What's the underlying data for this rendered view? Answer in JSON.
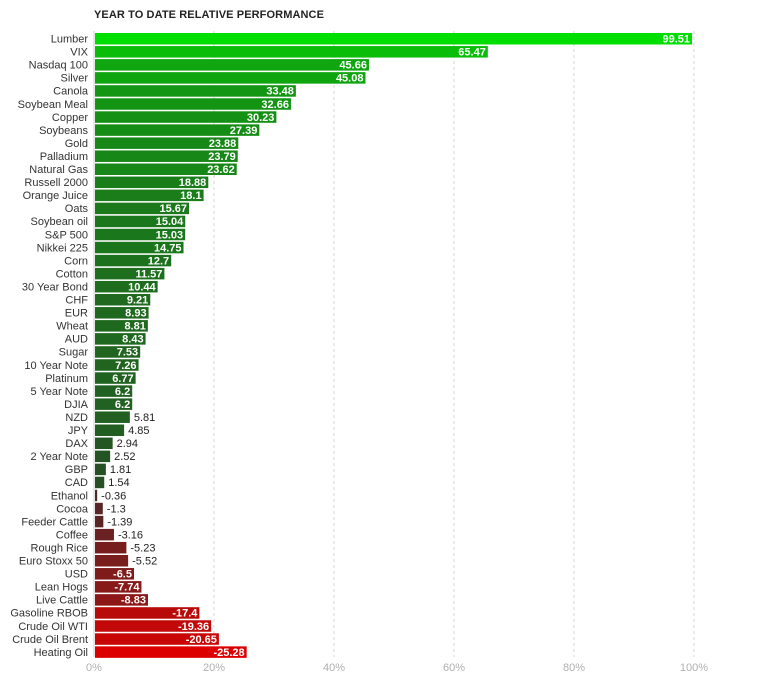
{
  "chart_data": {
    "type": "bar",
    "orientation": "horizontal",
    "title": "YEAR TO DATE RELATIVE PERFORMANCE",
    "xlim": [
      0,
      100
    ],
    "x_ticks": [
      "0%",
      "20%",
      "40%",
      "60%",
      "80%",
      "100%"
    ],
    "grid": true,
    "categories": [
      "Lumber",
      "VIX",
      "Nasdaq 100",
      "Silver",
      "Canola",
      "Soybean Meal",
      "Copper",
      "Soybeans",
      "Gold",
      "Palladium",
      "Natural Gas",
      "Russell 2000",
      "Orange Juice",
      "Oats",
      "Soybean oil",
      "S&P 500",
      "Nikkei 225",
      "Corn",
      "Cotton",
      "30 Year Bond",
      "CHF",
      "EUR",
      "Wheat",
      "AUD",
      "Sugar",
      "10 Year Note",
      "Platinum",
      "5 Year Note",
      "DJIA",
      "NZD",
      "JPY",
      "DAX",
      "2 Year Note",
      "GBP",
      "CAD",
      "Ethanol",
      "Cocoa",
      "Feeder Cattle",
      "Coffee",
      "Rough Rice",
      "Euro Stoxx 50",
      "USD",
      "Lean Hogs",
      "Live Cattle",
      "Gasoline RBOB",
      "Crude Oil WTI",
      "Crude Oil Brent",
      "Heating Oil"
    ],
    "values": [
      99.51,
      65.47,
      45.66,
      45.08,
      33.48,
      32.66,
      30.23,
      27.39,
      23.88,
      23.79,
      23.62,
      18.88,
      18.1,
      15.67,
      15.04,
      15.03,
      14.75,
      12.7,
      11.57,
      10.44,
      9.21,
      8.93,
      8.81,
      8.43,
      7.53,
      7.26,
      6.77,
      6.2,
      6.2,
      5.81,
      4.85,
      2.94,
      2.52,
      1.81,
      1.54,
      -0.36,
      -1.3,
      -1.39,
      -3.16,
      -5.23,
      -5.52,
      -6.5,
      -7.74,
      -8.83,
      -17.4,
      -19.36,
      -20.65,
      -25.28
    ],
    "value_labels": [
      "99.51",
      "65.47",
      "45.66",
      "45.08",
      "33.48",
      "32.66",
      "30.23",
      "27.39",
      "23.88",
      "23.79",
      "23.62",
      "18.88",
      "18.1",
      "15.67",
      "15.04",
      "15.03",
      "14.75",
      "12.7",
      "11.57",
      "10.44",
      "9.21",
      "8.93",
      "8.81",
      "8.43",
      "7.53",
      "7.26",
      "6.77",
      "6.2",
      "6.2",
      "5.81",
      "4.85",
      "2.94",
      "2.52",
      "1.81",
      "1.54",
      "-0.36",
      "-1.3",
      "-1.39",
      "-3.16",
      "-5.23",
      "-5.52",
      "-6.5",
      "-7.74",
      "-8.83",
      "-17.4",
      "-19.36",
      "-20.65",
      "-25.28"
    ],
    "bars_extend_right_for_negative": true,
    "colors": {
      "positive_high": "#00dd00",
      "positive_low": "#2a3f2a",
      "negative_low": "#4a2a2a",
      "negative_high": "#dd0000"
    }
  }
}
